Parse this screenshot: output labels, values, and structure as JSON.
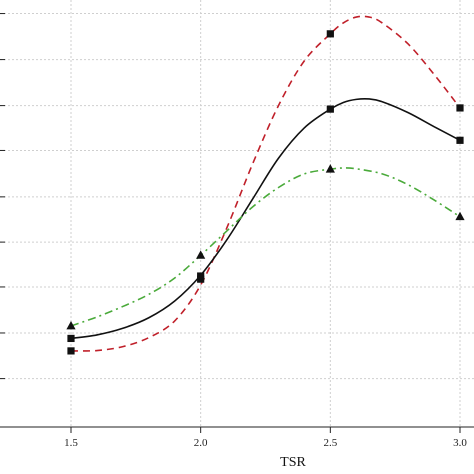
{
  "chart_data": {
    "type": "line",
    "title": "",
    "xlabel": "TSR",
    "ylabel": "",
    "xlim": [
      1.0,
      3.0
    ],
    "ylim": [
      0,
      1
    ],
    "x_ticks": [
      1.5,
      2.0,
      2.5,
      3.0
    ],
    "x_tick_labels": [
      "1.5",
      "2.0",
      "2.5",
      "3.0"
    ],
    "grid": true,
    "legend": "none",
    "series": [
      {
        "color": "#c0202a",
        "dash": "dashed",
        "marker": "square",
        "x": [
          1.5,
          2.0,
          2.5,
          3.0
        ],
        "y": [
          0.131,
          0.315,
          0.944,
          0.754
        ],
        "curve": [
          [
            1.5,
            0.131
          ],
          [
            1.6,
            0.132
          ],
          [
            1.7,
            0.142
          ],
          [
            1.8,
            0.165
          ],
          [
            1.9,
            0.208
          ],
          [
            2.0,
            0.3
          ],
          [
            2.1,
            0.445
          ],
          [
            2.2,
            0.61
          ],
          [
            2.3,
            0.76
          ],
          [
            2.4,
            0.875
          ],
          [
            2.5,
            0.944
          ],
          [
            2.55,
            0.972
          ],
          [
            2.6,
            0.987
          ],
          [
            2.65,
            0.987
          ],
          [
            2.7,
            0.972
          ],
          [
            2.8,
            0.918
          ],
          [
            2.9,
            0.84
          ],
          [
            3.0,
            0.754
          ]
        ]
      },
      {
        "color": "#111111",
        "dash": "solid",
        "marker": "square",
        "x": [
          1.5,
          2.0,
          2.5,
          3.0
        ],
        "y": [
          0.163,
          0.323,
          0.751,
          0.671
        ],
        "curve": [
          [
            1.5,
            0.163
          ],
          [
            1.6,
            0.172
          ],
          [
            1.7,
            0.189
          ],
          [
            1.8,
            0.216
          ],
          [
            1.9,
            0.259
          ],
          [
            2.0,
            0.325
          ],
          [
            2.1,
            0.415
          ],
          [
            2.2,
            0.52
          ],
          [
            2.3,
            0.625
          ],
          [
            2.4,
            0.703
          ],
          [
            2.5,
            0.751
          ],
          [
            2.55,
            0.768
          ],
          [
            2.6,
            0.776
          ],
          [
            2.65,
            0.777
          ],
          [
            2.7,
            0.77
          ],
          [
            2.8,
            0.742
          ],
          [
            2.9,
            0.706
          ],
          [
            3.0,
            0.671
          ]
        ]
      },
      {
        "color": "#4aaa3a",
        "dash": "dashdot",
        "marker": "triangle",
        "x": [
          1.5,
          2.0,
          2.5,
          3.0
        ],
        "y": [
          0.195,
          0.376,
          0.597,
          0.475
        ],
        "curve": [
          [
            1.5,
            0.195
          ],
          [
            1.6,
            0.218
          ],
          [
            1.7,
            0.245
          ],
          [
            1.8,
            0.276
          ],
          [
            1.9,
            0.318
          ],
          [
            2.0,
            0.376
          ],
          [
            2.1,
            0.438
          ],
          [
            2.2,
            0.5
          ],
          [
            2.3,
            0.55
          ],
          [
            2.4,
            0.585
          ],
          [
            2.5,
            0.597
          ],
          [
            2.55,
            0.6
          ],
          [
            2.6,
            0.598
          ],
          [
            2.7,
            0.585
          ],
          [
            2.8,
            0.557
          ],
          [
            2.9,
            0.518
          ],
          [
            3.0,
            0.475
          ]
        ]
      }
    ]
  }
}
